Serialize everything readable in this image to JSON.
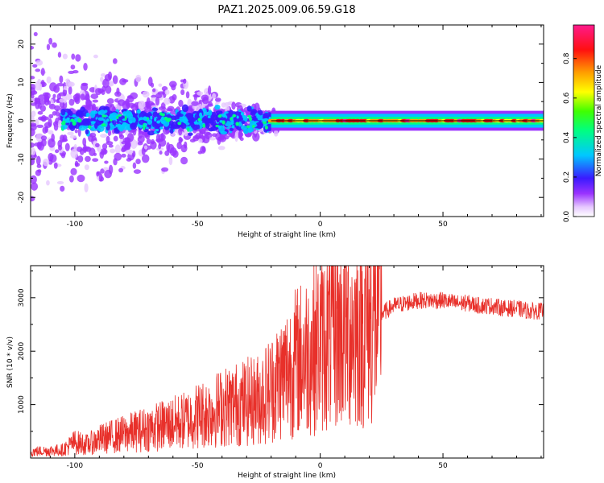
{
  "title": "PAZ1.2025.009.06.59.G18",
  "chart_data": [
    {
      "type": "heatmap",
      "xlabel": "Height of straight line (km)",
      "ylabel": "Frequency (Hz)",
      "xlim": [
        -118,
        91
      ],
      "ylim": [
        -25,
        25
      ],
      "x_ticks": [
        -100,
        -50,
        0,
        50
      ],
      "y_ticks": [
        -20,
        -10,
        0,
        10,
        20
      ],
      "colorbar": {
        "label": "Normalized spectral amplitude",
        "range": [
          0.0,
          0.97
        ],
        "ticks": [
          0.0,
          0.2,
          0.4,
          0.6,
          0.8
        ],
        "colormap": "rainbow (white, purple, blue, cyan, green, yellow, orange, red, pink)"
      },
      "description_series": [
        {
          "region": "height -118 to -20 km",
          "frequency_spread_hz": 25,
          "amplitude": "low (0.05-0.3), scattered blobs"
        },
        {
          "region": "height -20 to 91 km",
          "frequency_spread_hz": 2,
          "amplitude": "high (0.6-0.97), narrow band at 0 Hz"
        }
      ]
    },
    {
      "type": "line",
      "xlabel": "Height of straight line (km)",
      "ylabel": "SNR (10 * v/v)",
      "xlim": [
        -118,
        91
      ],
      "ylim": [
        0,
        3600
      ],
      "x_ticks": [
        -100,
        -50,
        0,
        50
      ],
      "y_ticks": [
        1000,
        2000,
        3000
      ],
      "line_color": "#e8302a",
      "x": [
        -118,
        -105,
        -100,
        -95,
        -90,
        -85,
        -80,
        -75,
        -70,
        -65,
        -60,
        -55,
        -50,
        -45,
        -40,
        -35,
        -30,
        -25,
        -20,
        -15,
        -10,
        -5,
        0,
        5,
        7,
        10,
        15,
        20,
        25,
        30,
        35,
        40,
        45,
        50,
        55,
        60,
        65,
        70,
        75,
        80,
        85,
        91
      ],
      "y": [
        120,
        150,
        300,
        250,
        350,
        400,
        450,
        500,
        550,
        600,
        650,
        700,
        800,
        850,
        950,
        1000,
        1050,
        1100,
        1300,
        1550,
        1800,
        1950,
        2150,
        2300,
        2400,
        2350,
        2450,
        2550,
        2700,
        2850,
        2900,
        2950,
        2950,
        2950,
        2900,
        2900,
        2850,
        2850,
        2800,
        2800,
        2750,
        2750
      ]
    }
  ]
}
